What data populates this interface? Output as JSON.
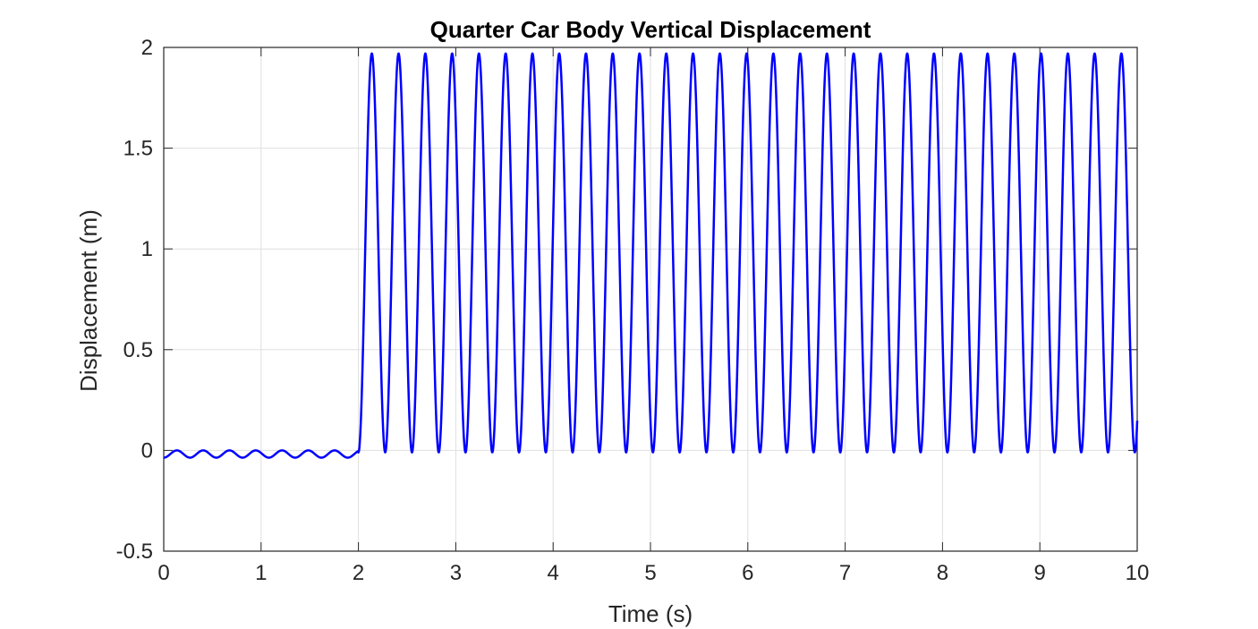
{
  "chart_data": {
    "type": "line",
    "title": "Quarter Car Body Vertical Displacement",
    "xlabel": "Time (s)",
    "ylabel": "Displacement (m)",
    "xlim": [
      0,
      10
    ],
    "ylim": [
      -0.5,
      2
    ],
    "xticks": [
      "0",
      "1",
      "2",
      "3",
      "4",
      "5",
      "6",
      "7",
      "8",
      "9",
      "10"
    ],
    "yticks": [
      "-0.5",
      "0",
      "0.5",
      "1",
      "1.5",
      "2"
    ],
    "grid": true,
    "line_color": "#0000ff",
    "series": [
      {
        "segments": [
          {
            "t_start": 0,
            "t_end": 2,
            "mean": -0.018,
            "amplitude": 0.018,
            "period": 0.27
          },
          {
            "t_start": 2,
            "t_end": 10,
            "mean": 0.98,
            "amplitude": 0.99,
            "period": 0.275
          }
        ]
      }
    ]
  }
}
